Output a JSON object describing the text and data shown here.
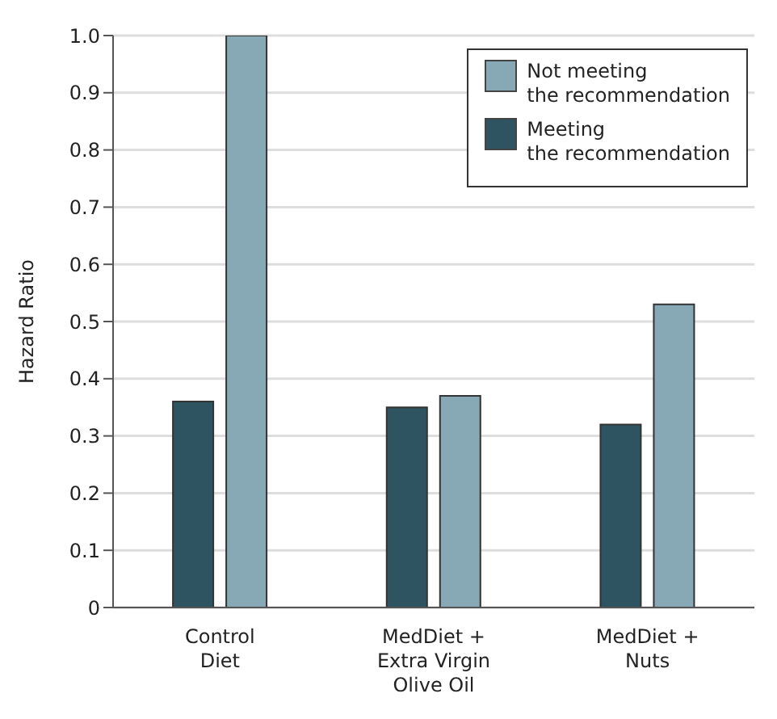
{
  "chart_data": {
    "type": "bar",
    "ylabel": "Hazard Ratio",
    "categories": [
      "Control\nDiet",
      "MedDiet +\nExtra Virgin\nOlive Oil",
      "MedDiet +\nNuts"
    ],
    "series": [
      {
        "name": "Meeting\nthe recommendation",
        "color": "#2e5461",
        "values": [
          0.36,
          0.35,
          0.32
        ]
      },
      {
        "name": "Not meeting\nthe recommendation",
        "color": "#87a8b5",
        "values": [
          1.0,
          0.37,
          0.53
        ]
      }
    ],
    "ylim": [
      0,
      1.0
    ],
    "yticks": [
      0,
      0.1,
      0.2,
      0.3,
      0.4,
      0.5,
      0.6,
      0.7,
      0.8,
      0.9,
      {
        "value": 1.0,
        "label": "1.0"
      }
    ],
    "grid": "y",
    "legend": "top right"
  }
}
